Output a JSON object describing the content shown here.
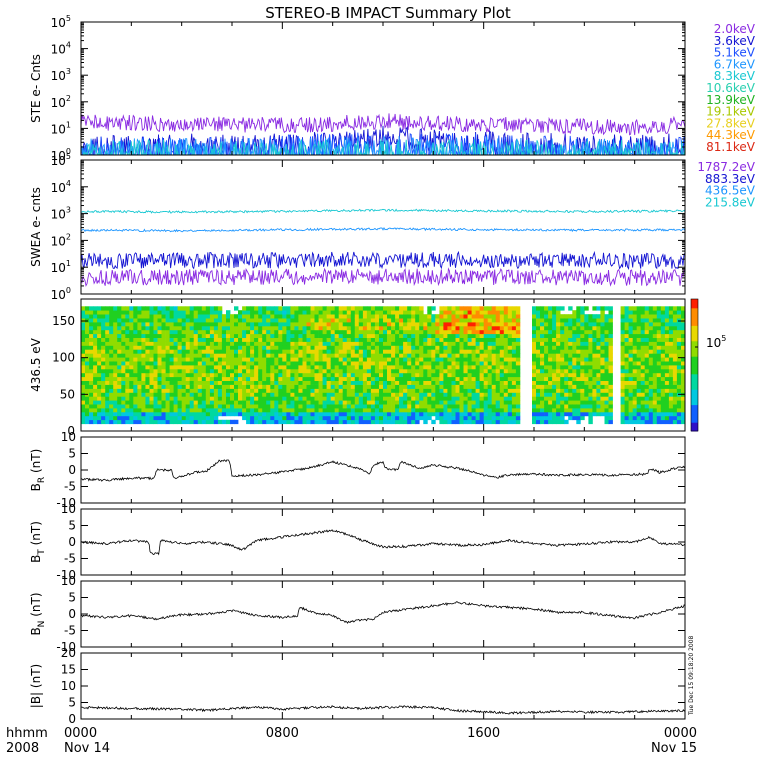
{
  "title": "STEREO-B IMPACT Summary Plot",
  "colors": {
    "violet": "#8a2be2",
    "blue": "#1414d2",
    "royal": "#1e50ff",
    "skyblue": "#1e96ff",
    "cyan": "#19c8d2",
    "teal": "#2ad0b0",
    "green": "#1fb21f",
    "yellowgreen": "#a8c800",
    "yellow": "#e8d020",
    "orange": "#ff9a00",
    "red": "#dc2814"
  },
  "x_axis": {
    "row_label_1": "hhmm",
    "row_label_2": "2008",
    "ticks": [
      {
        "hour": 0,
        "label": "0000",
        "sub": "Nov 14"
      },
      {
        "hour": 8,
        "label": "0800",
        "sub": ""
      },
      {
        "hour": 16,
        "label": "1600",
        "sub": ""
      },
      {
        "hour": 24,
        "label": "0000",
        "sub": "Nov 15"
      }
    ],
    "range_hours": [
      0,
      24
    ]
  },
  "timestamp": "Tue Dec 15 09:18:20 2008",
  "colorbar": {
    "label": "10",
    "exponent": "5"
  },
  "chart_data": [
    {
      "id": "ste",
      "type": "line",
      "ylabel": "STE e- Cnts",
      "yscale": "log",
      "ylim": [
        1,
        100000
      ],
      "ytick_exponents": [
        0,
        1,
        2,
        3,
        4,
        5
      ],
      "legend": [
        {
          "name": "2.0keV",
          "color": "violet"
        },
        {
          "name": "3.6keV",
          "color": "blue"
        },
        {
          "name": "5.1keV",
          "color": "royal"
        },
        {
          "name": "6.7keV",
          "color": "skyblue"
        },
        {
          "name": "8.3keV",
          "color": "cyan"
        },
        {
          "name": "10.6keV",
          "color": "teal"
        },
        {
          "name": "13.9keV",
          "color": "green"
        },
        {
          "name": "19.1keV",
          "color": "yellowgreen"
        },
        {
          "name": "27.8keV",
          "color": "yellow"
        },
        {
          "name": "44.3keV",
          "color": "orange"
        },
        {
          "name": "81.1keV",
          "color": "red"
        }
      ],
      "series": [
        {
          "color": "violet",
          "hours": [
            0,
            2,
            4,
            6,
            8,
            10,
            11,
            12,
            13,
            14,
            16,
            18,
            20,
            22,
            23,
            24
          ],
          "values": [
            17,
            16,
            15,
            14,
            13,
            15,
            17,
            19,
            17,
            15,
            14,
            13,
            12,
            11,
            12,
            15
          ]
        },
        {
          "color": "blue",
          "hours": [
            0,
            3,
            6,
            9,
            11,
            12,
            13,
            15,
            18,
            21,
            24
          ],
          "values": [
            2.2,
            2.3,
            2.2,
            2.5,
            3.5,
            4.5,
            4,
            3,
            2.5,
            2.2,
            2.3
          ]
        },
        {
          "color": "royal",
          "hours": [
            0,
            6,
            11,
            13,
            18,
            24
          ],
          "values": [
            1.8,
            1.7,
            2.6,
            2.6,
            2,
            1.8
          ]
        },
        {
          "color": "skyblue",
          "hours": [
            0,
            6,
            12,
            18,
            24
          ],
          "values": [
            1.5,
            1.5,
            1.9,
            1.6,
            1.5
          ]
        },
        {
          "color": "cyan",
          "hours": [
            0,
            12,
            24
          ],
          "values": [
            1.3,
            1.4,
            1.3
          ]
        }
      ]
    },
    {
      "id": "swea",
      "type": "line",
      "ylabel": "SWEA e- cnts",
      "yscale": "log",
      "ylim": [
        1,
        100000
      ],
      "ytick_exponents": [
        0,
        1,
        2,
        3,
        4,
        5
      ],
      "legend": [
        {
          "name": "1787.2eV",
          "color": "violet"
        },
        {
          "name": "883.3eV",
          "color": "blue"
        },
        {
          "name": "436.5eV",
          "color": "skyblue"
        },
        {
          "name": "215.8eV",
          "color": "cyan"
        }
      ],
      "series": [
        {
          "color": "cyan",
          "hours": [
            0,
            4,
            8,
            12,
            16,
            20,
            24
          ],
          "values": [
            1200,
            1150,
            1200,
            1350,
            1250,
            1200,
            1250
          ]
        },
        {
          "color": "skyblue",
          "hours": [
            0,
            4,
            8,
            12,
            16,
            20,
            24
          ],
          "values": [
            240,
            230,
            250,
            270,
            250,
            240,
            250
          ]
        },
        {
          "color": "blue",
          "hours": [
            0,
            12,
            24
          ],
          "values": [
            17,
            19,
            17
          ]
        },
        {
          "color": "violet",
          "hours": [
            0,
            12,
            24
          ],
          "values": [
            4,
            4.5,
            4
          ]
        }
      ]
    },
    {
      "id": "pad",
      "type": "heatmap",
      "ylabel": "436.5 eV",
      "ylim": [
        0,
        180
      ],
      "yticks": [
        0,
        50,
        100,
        150
      ],
      "data_extent": [
        10,
        170
      ],
      "gap_bins": [
        [
          17.5,
          17.9
        ],
        [
          21.2,
          21.5
        ]
      ]
    },
    {
      "id": "br",
      "type": "line",
      "ylabel": "B",
      "ylabel_sub": "R",
      "ylabel_unit": " (nT)",
      "ylim": [
        -10,
        10
      ],
      "yticks": [
        -10,
        -5,
        0,
        5,
        10
      ],
      "hours": [
        0,
        1,
        2,
        2.9,
        3.0,
        3.6,
        3.7,
        4.5,
        5.0,
        5.5,
        5.6,
        5.9,
        6.0,
        7,
        8,
        9,
        10,
        11,
        11.5,
        11.6,
        12.0,
        12.1,
        12.6,
        12.7,
        13.5,
        14,
        15,
        16,
        16.6,
        17,
        18,
        19,
        20,
        21,
        22,
        22.5,
        22.6,
        23,
        23.5,
        24
      ],
      "values": [
        -2.8,
        -3.1,
        -2.4,
        -2.5,
        0,
        0,
        -2.5,
        -0.8,
        -0.2,
        2.8,
        2.8,
        2.8,
        -1.8,
        -1.5,
        -0.6,
        0.5,
        2.5,
        0.5,
        -1.2,
        1.5,
        2.5,
        0.5,
        0,
        2.5,
        0.5,
        1.5,
        0.5,
        -1.5,
        -2.2,
        -1.4,
        -1.2,
        -1.6,
        -1.4,
        -1.6,
        -1.4,
        -1.2,
        0.5,
        -0.8,
        0.3,
        1
      ]
    },
    {
      "id": "bt",
      "type": "line",
      "ylabel": "B",
      "ylabel_sub": "T",
      "ylabel_unit": " (nT)",
      "ylim": [
        -10,
        10
      ],
      "yticks": [
        -10,
        -5,
        0,
        5,
        10
      ],
      "hours": [
        0,
        1,
        2,
        2.7,
        2.75,
        3.1,
        3.15,
        4,
        5,
        6,
        6.4,
        7,
        8,
        9,
        10,
        10.5,
        11,
        11.6,
        12,
        13,
        14,
        15,
        16,
        17,
        18,
        19,
        20,
        21,
        22,
        22.6,
        23,
        24
      ],
      "values": [
        0,
        -0.5,
        0.5,
        0,
        -3.5,
        -3.5,
        0.5,
        -0.5,
        0,
        -1,
        -2.5,
        0.5,
        1.5,
        2.5,
        3.5,
        2.5,
        1,
        -0.5,
        -1.5,
        -1.3,
        -0.5,
        -1,
        -0.8,
        0.5,
        -0.5,
        -1,
        -0.6,
        0,
        0,
        1.5,
        -0.5,
        -0.8
      ]
    },
    {
      "id": "bn",
      "type": "line",
      "ylabel": "B",
      "ylabel_sub": "N",
      "ylabel_unit": " (nT)",
      "ylim": [
        -10,
        10
      ],
      "yticks": [
        -10,
        -5,
        0,
        5,
        10
      ],
      "hours": [
        0,
        1,
        2,
        3,
        4,
        5,
        6,
        7,
        8,
        8.6,
        8.7,
        9.2,
        10,
        10.5,
        11,
        11.6,
        12,
        13,
        14,
        15,
        16,
        17,
        18,
        19,
        20,
        21,
        22,
        23,
        24
      ],
      "values": [
        -0.5,
        -1,
        -0.5,
        -1.5,
        -0.2,
        0,
        1,
        -0.5,
        -1,
        -0.5,
        2,
        0.5,
        -0.5,
        -2.5,
        -2,
        -1.5,
        0.5,
        1.5,
        2.5,
        3.5,
        2.5,
        2,
        1.5,
        0.5,
        0.5,
        -0.5,
        -1.2,
        0.5,
        2.5
      ]
    },
    {
      "id": "bmag",
      "type": "line",
      "ylabel": "|B| (nT)",
      "ylim": [
        0,
        20
      ],
      "yticks": [
        0,
        5,
        10,
        15,
        20
      ],
      "hours": [
        0,
        2,
        4,
        5,
        6,
        7,
        8,
        9,
        10,
        11,
        12,
        13,
        14,
        15,
        16,
        17,
        18,
        19,
        20,
        21,
        22,
        23,
        24
      ],
      "values": [
        3.5,
        3.2,
        3,
        2.6,
        3.2,
        3.6,
        3,
        3.4,
        3.7,
        3.2,
        3.5,
        3.7,
        3.4,
        2.5,
        2.2,
        1.8,
        2,
        2.3,
        2.1,
        2,
        2.2,
        2.4,
        2.5
      ]
    }
  ]
}
